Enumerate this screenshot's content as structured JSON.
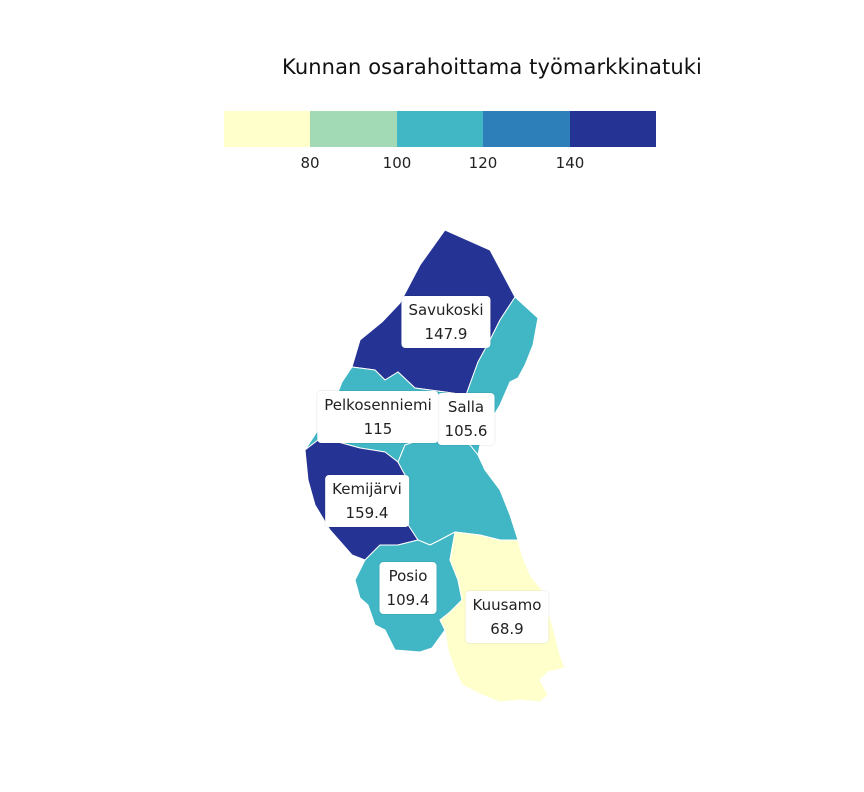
{
  "title": "Kunnan osarahoittama työmarkkinatuki",
  "legend": {
    "colors": [
      "#ffffcc",
      "#a1dab4",
      "#41b6c4",
      "#2c7fb8",
      "#253494"
    ],
    "ticks": [
      "80",
      "100",
      "120",
      "140"
    ]
  },
  "municipalities": [
    {
      "name": "Savukoski",
      "value": "147.9",
      "color": "#253494"
    },
    {
      "name": "Salla",
      "value": "105.6",
      "color": "#41b6c4"
    },
    {
      "name": "Pelkosenniemi",
      "value": "115",
      "color": "#41b6c4"
    },
    {
      "name": "Kemijärvi",
      "value": "159.4",
      "color": "#253494"
    },
    {
      "name": "Posio",
      "value": "109.4",
      "color": "#41b6c4"
    },
    {
      "name": "Kuusamo",
      "value": "68.9",
      "color": "#ffffcc"
    }
  ]
}
